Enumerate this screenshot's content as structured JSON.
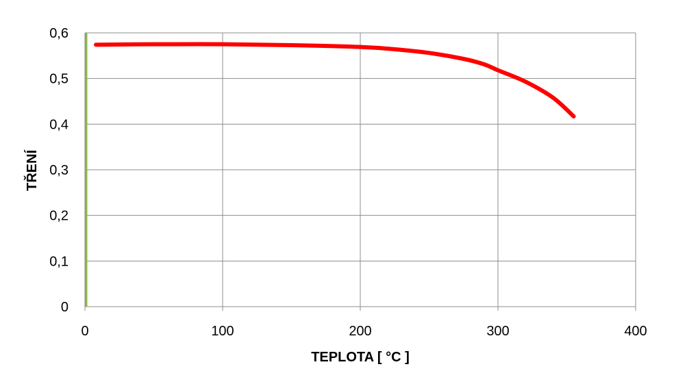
{
  "chart_data": {
    "type": "line",
    "title": "",
    "xlabel": "TEPLOTA [ °C ]",
    "ylabel": "TŘENÍ",
    "xlim": [
      0,
      400
    ],
    "ylim": [
      0,
      0.6
    ],
    "x_ticks": [
      0,
      100,
      200,
      300,
      400
    ],
    "x_tick_labels": [
      "0",
      "100",
      "200",
      "300",
      "400"
    ],
    "y_ticks": [
      0,
      0.1,
      0.2,
      0.3,
      0.4,
      0.5,
      0.6
    ],
    "y_tick_labels": [
      "0",
      "0,1",
      "0,2",
      "0,3",
      "0,4",
      "0,5",
      "0,6"
    ],
    "grid": true,
    "legend": "none",
    "series": [
      {
        "color": "#ff0000",
        "x": [
          8,
          50,
          100,
          150,
          200,
          225,
          250,
          275,
          290,
          300,
          320,
          340,
          355
        ],
        "y": [
          0.574,
          0.575,
          0.575,
          0.573,
          0.569,
          0.564,
          0.556,
          0.543,
          0.531,
          0.518,
          0.493,
          0.458,
          0.417
        ]
      }
    ],
    "y_axis_color": "#8cb84a"
  }
}
